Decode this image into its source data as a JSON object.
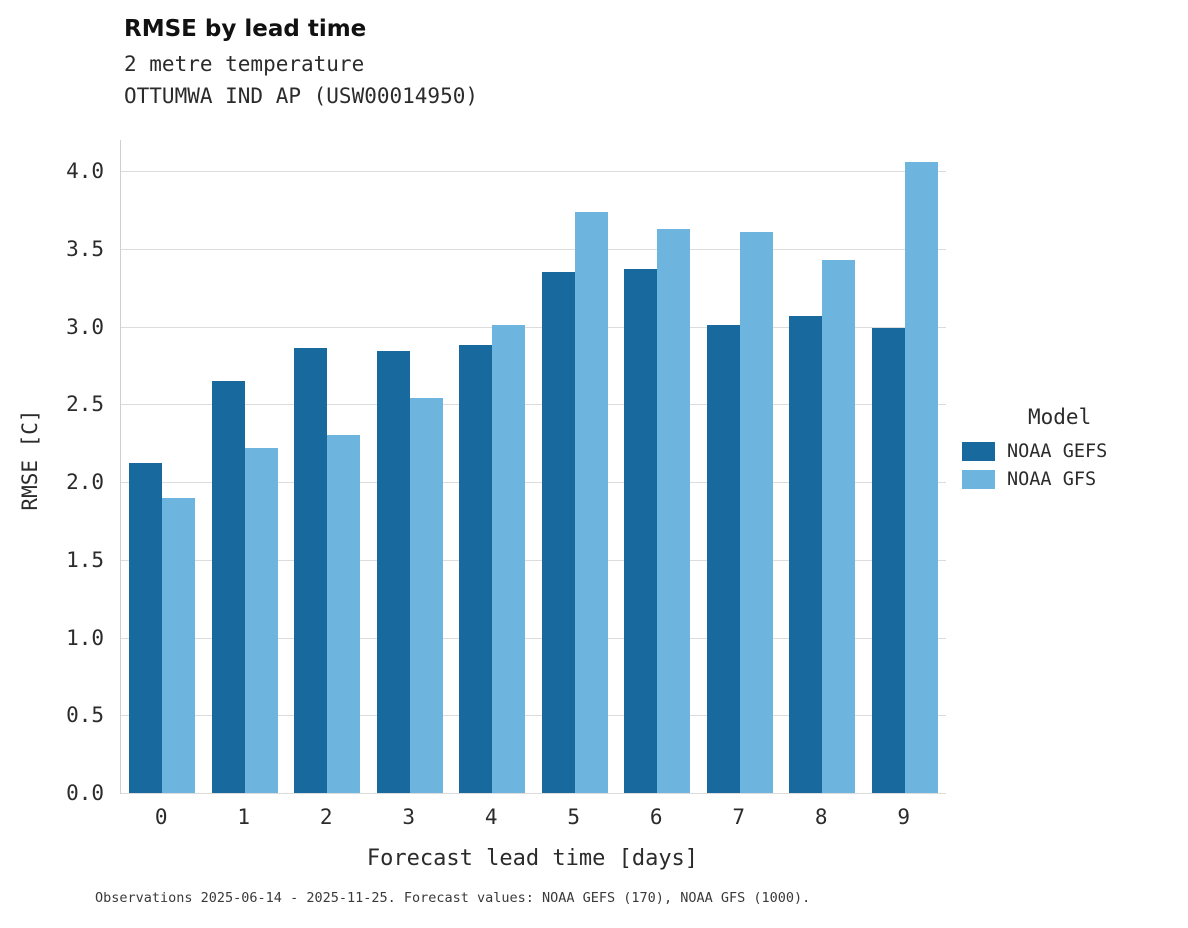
{
  "header": {
    "title": "RMSE by lead time",
    "subtitle1": "2 metre temperature",
    "subtitle2": "OTTUMWA IND AP (USW00014950)"
  },
  "legend": {
    "title": "Model"
  },
  "caption": "Observations 2025-06-14 - 2025-11-25. Forecast values: NOAA GEFS (170), NOAA GFS (1000).",
  "chart_data": {
    "type": "bar",
    "title": "RMSE by lead time",
    "subtitle": "2 metre temperature — OTTUMWA IND AP (USW00014950)",
    "categories": [
      "0",
      "1",
      "2",
      "3",
      "4",
      "5",
      "6",
      "7",
      "8",
      "9"
    ],
    "series": [
      {
        "name": "NOAA GEFS",
        "color": "#17699e",
        "values": [
          2.12,
          2.65,
          2.86,
          2.84,
          2.88,
          3.35,
          3.37,
          3.01,
          3.07,
          2.99
        ]
      },
      {
        "name": "NOAA GFS",
        "color": "#6db4de",
        "values": [
          1.9,
          2.22,
          2.3,
          2.54,
          3.01,
          3.74,
          3.63,
          3.61,
          3.43,
          4.06
        ]
      }
    ],
    "xlabel": "Forecast lead time [days]",
    "ylabel": "RMSE [C]",
    "ylim": [
      0,
      4.2
    ],
    "yticks": [
      0.0,
      0.5,
      1.0,
      1.5,
      2.0,
      2.5,
      3.0,
      3.5,
      4.0
    ],
    "grid": true,
    "legend_position": "right"
  }
}
